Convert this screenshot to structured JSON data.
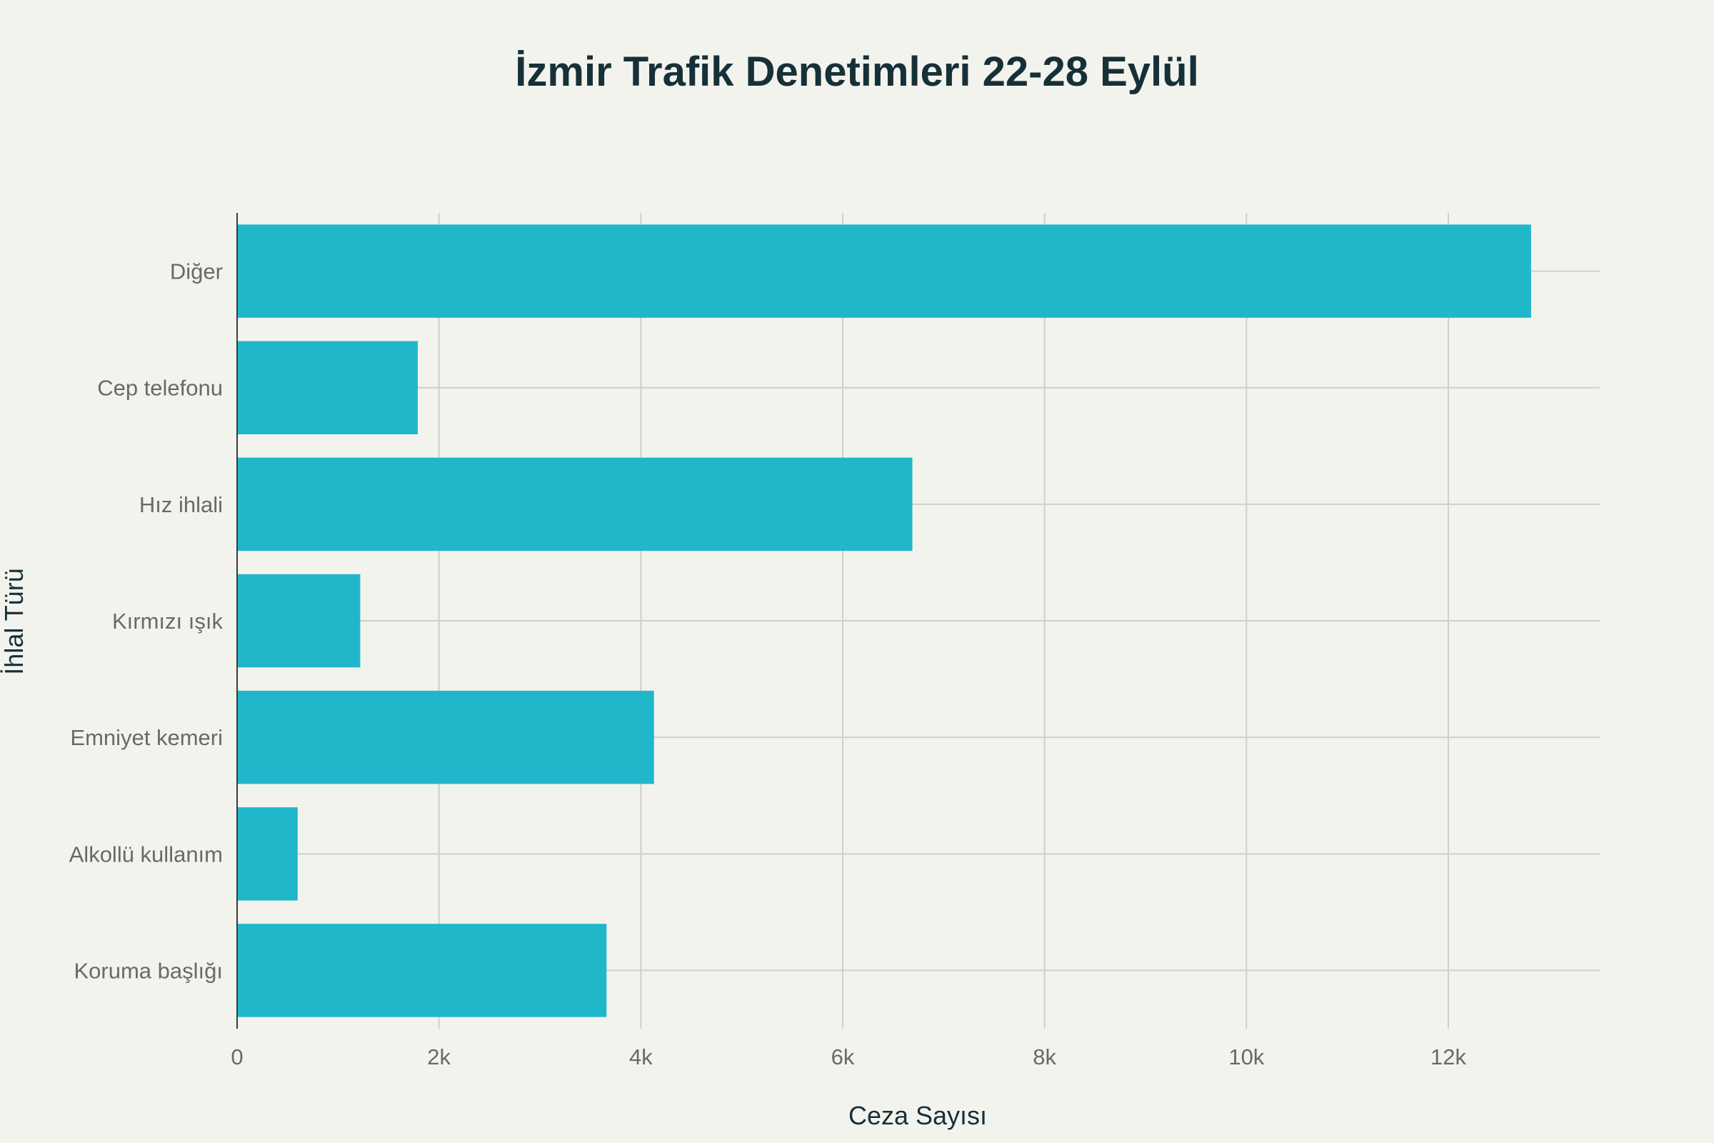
{
  "chart_data": {
    "type": "bar",
    "orientation": "horizontal",
    "title": "İzmir Trafik Denetimleri 22-28 Eylül",
    "xlabel": "Ceza Sayısı",
    "ylabel": "İhlal Türü",
    "categories": [
      "Diğer",
      "Cep telefonu",
      "Hız ihlali",
      "Kırmızı ışık",
      "Emniyet kemeri",
      "Alkollü kullanım",
      "Koruma başlığı"
    ],
    "values": [
      12820,
      1790,
      6690,
      1220,
      4130,
      600,
      3660
    ],
    "xlim": [
      0,
      13500
    ],
    "xticks": [
      0,
      2000,
      4000,
      6000,
      8000,
      10000,
      12000
    ],
    "xtick_labels": [
      "0",
      "2k",
      "4k",
      "6k",
      "8k",
      "10k",
      "12k"
    ],
    "bar_color": "#21b7cb",
    "grid": true
  }
}
